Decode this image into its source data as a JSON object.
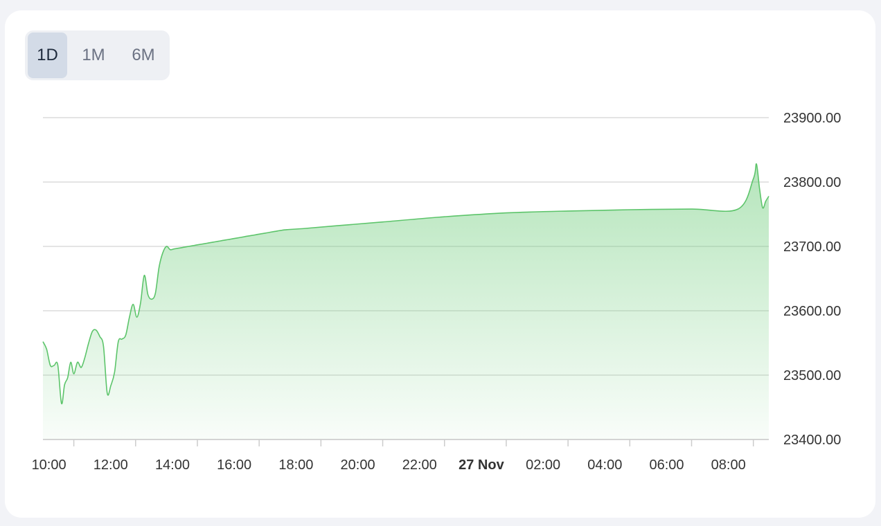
{
  "tabs": [
    {
      "label": "1D",
      "active": true
    },
    {
      "label": "1M",
      "active": false
    },
    {
      "label": "6M",
      "active": false
    }
  ],
  "colors": {
    "line": "#5cc46a",
    "fill": "#6acb77",
    "grid": "#dcdcdc"
  },
  "chart_data": {
    "type": "area",
    "title": "",
    "xlabel": "",
    "ylabel": "",
    "ylim": [
      23400,
      23900
    ],
    "grid": true,
    "y_axis_position": "right",
    "y_ticks": [
      "23400.00",
      "23500.00",
      "23600.00",
      "23700.00",
      "23800.00",
      "23900.00"
    ],
    "x_ticks": [
      {
        "label": "10:00",
        "t": 1,
        "bold": false
      },
      {
        "label": "12:00",
        "t": 3,
        "bold": false
      },
      {
        "label": "14:00",
        "t": 5,
        "bold": false
      },
      {
        "label": "16:00",
        "t": 7,
        "bold": false
      },
      {
        "label": "18:00",
        "t": 9,
        "bold": false
      },
      {
        "label": "20:00",
        "t": 11,
        "bold": false
      },
      {
        "label": "22:00",
        "t": 13,
        "bold": false
      },
      {
        "label": "27 Nov",
        "t": 15,
        "bold": true
      },
      {
        "label": "02:00",
        "t": 17,
        "bold": false
      },
      {
        "label": "04:00",
        "t": 19,
        "bold": false
      },
      {
        "label": "06:00",
        "t": 21,
        "bold": false
      },
      {
        "label": "08:00",
        "t": 23,
        "bold": false
      }
    ],
    "x_range_hours_since_09:00": [
      0,
      23.5
    ],
    "series": [
      {
        "x_hours_since_09:00": [
          0,
          0.12,
          0.24,
          0.36,
          0.48,
          0.6,
          0.7,
          0.8,
          0.9,
          1.0,
          1.12,
          1.24,
          1.36,
          1.48,
          1.6,
          1.72,
          1.84,
          1.96,
          2.08,
          2.2,
          2.32,
          2.44,
          2.56,
          2.68,
          2.8,
          2.92,
          3.04,
          3.16,
          3.28,
          3.4,
          3.52,
          3.64,
          3.76,
          3.88,
          4.0,
          4.12,
          4.24,
          4.36,
          4.48,
          4.6,
          4.72,
          4.84,
          4.96,
          5.08,
          5.2,
          5.32,
          5.44,
          5.56,
          5.68,
          5.8,
          5.92,
          6.04,
          6.16,
          6.28,
          6.4,
          6.52,
          6.64,
          6.76,
          6.88,
          7.0,
          7.12,
          7.24,
          7.36,
          7.48,
          7.6,
          7.72,
          7.9,
          8.5,
          9.5,
          11,
          13,
          15,
          17,
          19,
          21,
          22.5,
          23,
          23.1,
          23.2,
          23.3,
          23.4,
          23.5
        ],
        "y": [
          23552,
          23540,
          23515,
          23515,
          23516,
          23456,
          23485,
          23496,
          23520,
          23502,
          23520,
          23512,
          23528,
          23550,
          23568,
          23570,
          23560,
          23545,
          23472,
          23484,
          23505,
          23552,
          23556,
          23562,
          23590,
          23610,
          23590,
          23612,
          23655,
          23625,
          23618,
          23627,
          23668,
          23690,
          23700,
          23695,
          23696,
          23697,
          23698,
          23699,
          23700,
          23701,
          23702,
          23703,
          23704,
          23705,
          23706,
          23707,
          23708,
          23709,
          23710,
          23711,
          23712,
          23713,
          23714,
          23715,
          23716,
          23717,
          23718,
          23719,
          23720,
          23721,
          23722,
          23723,
          23724,
          23725,
          23726,
          23728,
          23732,
          23738,
          23746,
          23752,
          23755,
          23757,
          23758,
          23758,
          23805,
          23828,
          23790,
          23760,
          23770,
          23778
        ]
      }
    ]
  }
}
